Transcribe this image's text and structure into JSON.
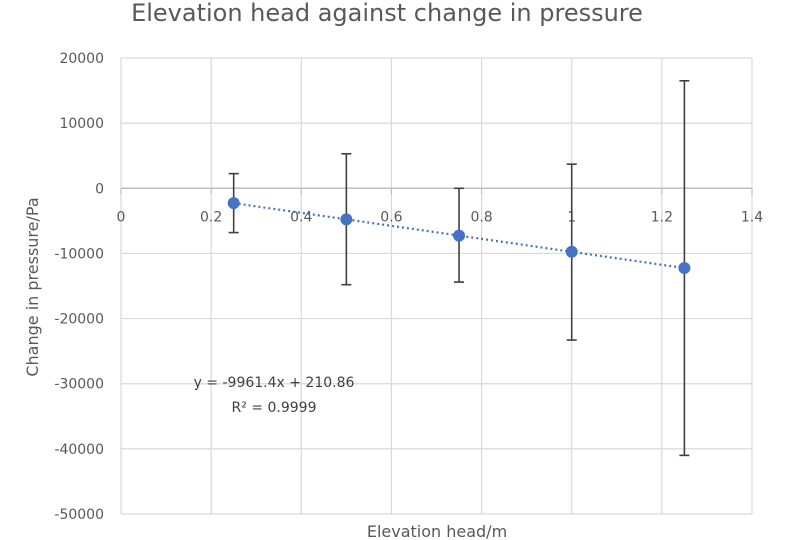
{
  "chart_data": {
    "type": "scatter",
    "title": "Elevation head against change in pressure",
    "xlabel": "Elevation head/m",
    "ylabel": "Change in pressure/Pa",
    "xlim": [
      0,
      1.4
    ],
    "ylim": [
      -50000,
      20000
    ],
    "x_ticks": [
      0,
      0.2,
      0.4,
      0.6,
      0.8,
      1,
      1.2,
      1.4
    ],
    "x_tick_labels": [
      "0",
      "0.2",
      "0.4",
      "0.6",
      "0.8",
      "1",
      "1.2",
      "1.4"
    ],
    "y_ticks": [
      20000,
      10000,
      0,
      -10000,
      -20000,
      -30000,
      -40000,
      -50000
    ],
    "y_tick_labels": [
      "20000",
      "10000",
      "0",
      "-10000",
      "-20000",
      "-30000",
      "-40000",
      "-50000"
    ],
    "grid": true,
    "series": [
      {
        "name": "Change in pressure",
        "color": "#4472c4",
        "points": [
          {
            "x": 0.25,
            "y": -2280,
            "err_high": 2250,
            "err_low": -6800
          },
          {
            "x": 0.5,
            "y": -4770,
            "err_high": 5300,
            "err_low": -14800
          },
          {
            "x": 0.75,
            "y": -7260,
            "err_high": 0,
            "err_low": -14400
          },
          {
            "x": 1.0,
            "y": -9750,
            "err_high": 3700,
            "err_low": -23300
          },
          {
            "x": 1.25,
            "y": -12240,
            "err_high": 16500,
            "err_low": -41000
          }
        ]
      }
    ],
    "trendline": {
      "type": "linear",
      "slope": -9961.4,
      "intercept": 210.86,
      "x_range": [
        0.25,
        1.25
      ],
      "color": "#4472c4",
      "equation": "y = -9961.4x + 210.86",
      "r_squared": "R² = 0.9999"
    }
  }
}
